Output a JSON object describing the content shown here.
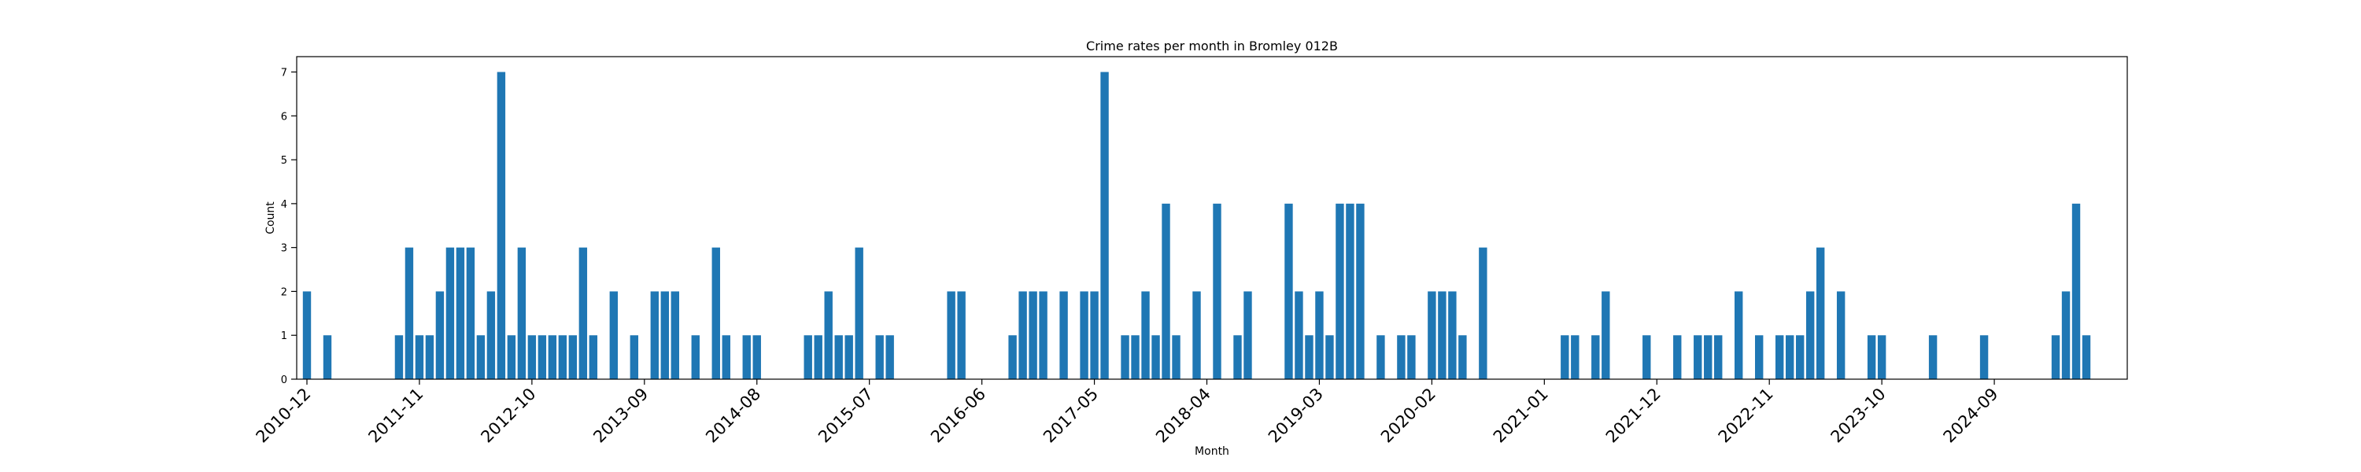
{
  "chart_data": {
    "type": "bar",
    "title": "Crime rates per month in Bromley 012B",
    "xlabel": "Month",
    "ylabel": "Count",
    "ylim": [
      0,
      7.35
    ],
    "yticks": [
      0,
      1,
      2,
      3,
      4,
      5,
      6,
      7
    ],
    "xtick_labels": [
      "2010-12",
      "2011-11",
      "2012-10",
      "2013-09",
      "2014-08",
      "2015-07",
      "2016-06",
      "2017-05",
      "2018-04",
      "2019-03",
      "2020-02",
      "2021-01",
      "2021-12",
      "2022-11",
      "2023-10",
      "2024-09"
    ],
    "grid": false,
    "bar_color": "#1f77b4",
    "categories": [
      "2010-12",
      "2011-02",
      "2011-09",
      "2011-10",
      "2011-11",
      "2011-12",
      "2012-01",
      "2012-02",
      "2012-03",
      "2012-04",
      "2012-05",
      "2012-06",
      "2012-07",
      "2012-08",
      "2012-09",
      "2012-10",
      "2012-11",
      "2012-12",
      "2013-01",
      "2013-02",
      "2013-03",
      "2013-04",
      "2013-06",
      "2013-08",
      "2013-10",
      "2013-11",
      "2013-12",
      "2014-02",
      "2014-04",
      "2014-05",
      "2014-07",
      "2014-08",
      "2015-01",
      "2015-02",
      "2015-03",
      "2015-04",
      "2015-05",
      "2015-06",
      "2015-08",
      "2015-09",
      "2016-03",
      "2016-04",
      "2016-09",
      "2016-10",
      "2016-11",
      "2016-12",
      "2017-02",
      "2017-04",
      "2017-05",
      "2017-06",
      "2017-08",
      "2017-09",
      "2017-10",
      "2017-11",
      "2017-12",
      "2018-01",
      "2018-03",
      "2018-05",
      "2018-07",
      "2018-08",
      "2018-12",
      "2019-01",
      "2019-02",
      "2019-03",
      "2019-04",
      "2019-05",
      "2019-06",
      "2019-07",
      "2019-09",
      "2019-11",
      "2019-12",
      "2020-02",
      "2020-03",
      "2020-04",
      "2020-05",
      "2020-07",
      "2021-03",
      "2021-04",
      "2021-06",
      "2021-07",
      "2021-11",
      "2022-02",
      "2022-04",
      "2022-05",
      "2022-06",
      "2022-08",
      "2022-10",
      "2022-12",
      "2023-01",
      "2023-02",
      "2023-03",
      "2023-04",
      "2023-06",
      "2023-09",
      "2023-10",
      "2024-03",
      "2024-08",
      "2025-03",
      "2025-04",
      "2025-05",
      "2025-06"
    ],
    "values": [
      2,
      1,
      1,
      3,
      1,
      1,
      2,
      3,
      3,
      3,
      1,
      2,
      7,
      1,
      3,
      1,
      1,
      1,
      1,
      1,
      3,
      1,
      2,
      1,
      2,
      2,
      2,
      1,
      3,
      1,
      1,
      1,
      1,
      1,
      2,
      1,
      1,
      3,
      1,
      1,
      2,
      2,
      1,
      2,
      2,
      2,
      2,
      2,
      2,
      7,
      1,
      1,
      2,
      1,
      4,
      1,
      2,
      4,
      1,
      2,
      4,
      2,
      1,
      2,
      1,
      4,
      4,
      4,
      1,
      1,
      1,
      2,
      2,
      2,
      1,
      3,
      1,
      1,
      1,
      2,
      1,
      1,
      1,
      1,
      1,
      2,
      1,
      1,
      1,
      1,
      2,
      3,
      2,
      1,
      1,
      1,
      1,
      1,
      2,
      4,
      1
    ]
  }
}
